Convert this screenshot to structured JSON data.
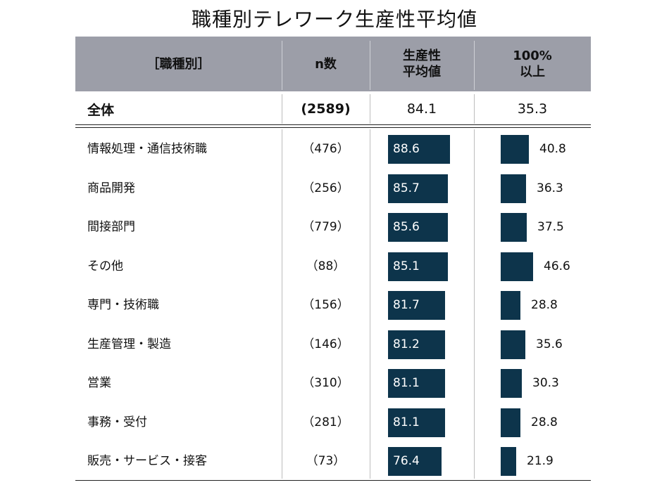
{
  "chart_data": {
    "type": "table",
    "title": "職種別テレワーク生産性平均値",
    "columns": [
      "［職種別］",
      "n数",
      "生産性\n平均値",
      "100%\n以上"
    ],
    "total": {
      "label": "全体",
      "n": "(2589)",
      "avg": 84.1,
      "over100": 35.3
    },
    "rows": [
      {
        "label": "情報処理・通信技術職",
        "n": "（476）",
        "avg": 88.6,
        "over100": 40.8
      },
      {
        "label": "商品開発",
        "n": "（256）",
        "avg": 85.7,
        "over100": 36.3
      },
      {
        "label": "間接部門",
        "n": "（779）",
        "avg": 85.6,
        "over100": 37.5
      },
      {
        "label": "その他",
        "n": "（88）",
        "avg": 85.1,
        "over100": 46.6
      },
      {
        "label": "専門・技術職",
        "n": "（156）",
        "avg": 81.7,
        "over100": 28.8
      },
      {
        "label": "生産管理・製造",
        "n": "（146）",
        "avg": 81.2,
        "over100": 35.6
      },
      {
        "label": "営業",
        "n": "（310）",
        "avg": 81.1,
        "over100": 30.3
      },
      {
        "label": "事務・受付",
        "n": "（281）",
        "avg": 81.1,
        "over100": 28.8
      },
      {
        "label": "販売・サービス・接客",
        "n": "（73）",
        "avg": 76.4,
        "over100": 21.9
      }
    ],
    "bar_color": "#0d344b",
    "header_color": "#9c9ea8"
  }
}
